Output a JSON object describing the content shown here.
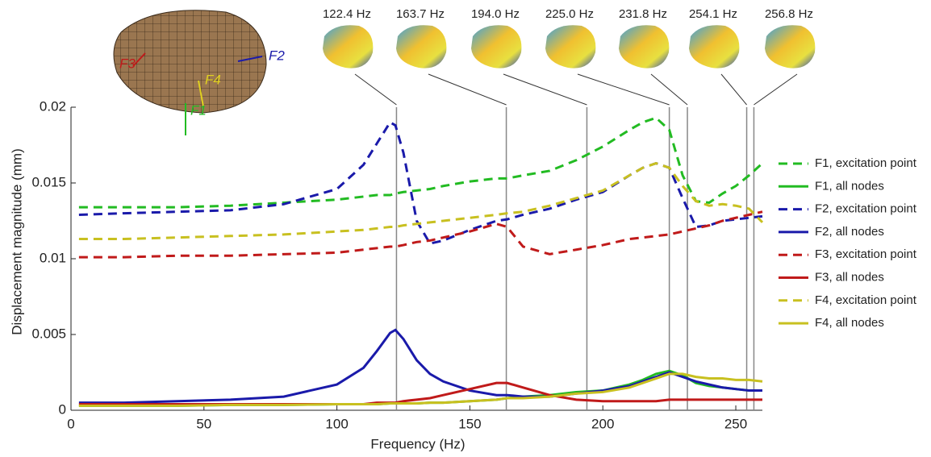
{
  "chart_data": {
    "type": "line",
    "xlabel": "Frequency (Hz)",
    "ylabel": "Displacement magnitude (mm)",
    "xlim": [
      0,
      260
    ],
    "xticks": [
      0,
      50,
      100,
      150,
      200,
      250
    ],
    "ylim": [
      0,
      0.02
    ],
    "yticks": [
      0,
      0.005,
      0.01,
      0.015,
      0.02
    ],
    "x": [
      3,
      20,
      40,
      60,
      80,
      100,
      110,
      115,
      120,
      122,
      125,
      130,
      135,
      140,
      150,
      160,
      164,
      170,
      180,
      190,
      200,
      210,
      215,
      220,
      225,
      230,
      235,
      240,
      245,
      250,
      255,
      260
    ],
    "modes": [
      {
        "value": 122.4,
        "label": "122.4 Hz"
      },
      {
        "value": 163.7,
        "label": "163.7 Hz"
      },
      {
        "value": 194.0,
        "label": "194.0 Hz"
      },
      {
        "value": 225.0,
        "label": "225.0 Hz"
      },
      {
        "value": 231.8,
        "label": "231.8 Hz"
      },
      {
        "value": 254.1,
        "label": "254.1 Hz"
      },
      {
        "value": 256.8,
        "label": "256.8 Hz"
      }
    ],
    "inset_labels": [
      "F1",
      "F2",
      "F3",
      "F4"
    ],
    "series": [
      {
        "name": "F1, excitation point",
        "color": "#22bb22",
        "style": "dashed",
        "values": [
          0.0134,
          0.0134,
          0.0134,
          0.0135,
          0.0137,
          0.0139,
          0.0141,
          0.0142,
          0.0142,
          0.0143,
          0.0144,
          0.0145,
          0.0146,
          0.0148,
          0.0151,
          0.0153,
          0.0153,
          0.0155,
          0.0158,
          0.0165,
          0.0174,
          0.0185,
          0.019,
          0.0193,
          0.0185,
          0.0155,
          0.0138,
          0.0137,
          0.0143,
          0.0148,
          0.0155,
          0.0163
        ]
      },
      {
        "name": "F1, all nodes",
        "color": "#22bb22",
        "style": "solid",
        "values": [
          0.0003,
          0.0003,
          0.0003,
          0.00035,
          0.00035,
          0.0004,
          0.0004,
          0.0004,
          0.00045,
          0.00045,
          0.00045,
          0.00045,
          0.0005,
          0.0005,
          0.0006,
          0.0007,
          0.0008,
          0.0009,
          0.001,
          0.0012,
          0.0013,
          0.0017,
          0.002,
          0.0024,
          0.0026,
          0.0023,
          0.0018,
          0.0016,
          0.0015,
          0.0014,
          0.0013,
          0.0013
        ]
      },
      {
        "name": "F2, excitation point",
        "color": "#1a1aaa",
        "style": "dashed",
        "values": [
          0.0129,
          0.013,
          0.0131,
          0.0132,
          0.0136,
          0.0146,
          0.0162,
          0.0176,
          0.019,
          0.0188,
          0.017,
          0.0125,
          0.011,
          0.0112,
          0.0119,
          0.0125,
          0.0126,
          0.0129,
          0.0133,
          0.0139,
          0.0144,
          0.0155,
          0.016,
          0.0163,
          0.016,
          0.014,
          0.0121,
          0.0122,
          0.0125,
          0.0126,
          0.0127,
          0.0128
        ]
      },
      {
        "name": "F2, all nodes",
        "color": "#1a1aaa",
        "style": "solid",
        "values": [
          0.0005,
          0.0005,
          0.0006,
          0.0007,
          0.0009,
          0.0017,
          0.0028,
          0.0039,
          0.0051,
          0.0053,
          0.0047,
          0.0033,
          0.0024,
          0.0019,
          0.0013,
          0.001,
          0.001,
          0.0009,
          0.0009,
          0.0011,
          0.0013,
          0.0016,
          0.0019,
          0.0022,
          0.0025,
          0.0022,
          0.0019,
          0.0017,
          0.0015,
          0.0014,
          0.0013,
          0.0013
        ]
      },
      {
        "name": "F3, excitation point",
        "color": "#c01a1a",
        "style": "dashed",
        "values": [
          0.0101,
          0.0101,
          0.0102,
          0.0102,
          0.0103,
          0.0104,
          0.0106,
          0.0107,
          0.0108,
          0.0108,
          0.0109,
          0.0111,
          0.0112,
          0.0114,
          0.0118,
          0.0123,
          0.0121,
          0.0108,
          0.0103,
          0.0106,
          0.0109,
          0.0113,
          0.0114,
          0.0115,
          0.0116,
          0.0118,
          0.012,
          0.0122,
          0.0125,
          0.0127,
          0.0129,
          0.0131
        ]
      },
      {
        "name": "F3, all nodes",
        "color": "#c01a1a",
        "style": "solid",
        "values": [
          0.0004,
          0.0004,
          0.0004,
          0.0004,
          0.0004,
          0.0004,
          0.0004,
          0.0005,
          0.0005,
          0.0005,
          0.0006,
          0.0007,
          0.0008,
          0.001,
          0.0014,
          0.0018,
          0.0018,
          0.0015,
          0.001,
          0.0007,
          0.0006,
          0.0006,
          0.0006,
          0.0006,
          0.0007,
          0.0007,
          0.0007,
          0.0007,
          0.0007,
          0.0007,
          0.0007,
          0.0007
        ]
      },
      {
        "name": "F4, excitation point",
        "color": "#c8c020",
        "style": "dashed",
        "values": [
          0.0113,
          0.0113,
          0.0114,
          0.0115,
          0.0116,
          0.0118,
          0.0119,
          0.012,
          0.0121,
          0.0121,
          0.0122,
          0.0123,
          0.0124,
          0.0125,
          0.0127,
          0.0129,
          0.013,
          0.0131,
          0.0135,
          0.014,
          0.0145,
          0.0155,
          0.016,
          0.0163,
          0.016,
          0.0148,
          0.0138,
          0.0135,
          0.0136,
          0.0135,
          0.0133,
          0.0124
        ]
      },
      {
        "name": "F4, all nodes",
        "color": "#c8c020",
        "style": "solid",
        "values": [
          0.0003,
          0.0003,
          0.0003,
          0.00035,
          0.00035,
          0.0004,
          0.0004,
          0.0004,
          0.00045,
          0.00045,
          0.00045,
          0.00045,
          0.0005,
          0.0005,
          0.0006,
          0.0007,
          0.0008,
          0.0008,
          0.0009,
          0.0011,
          0.0012,
          0.0015,
          0.0018,
          0.0021,
          0.0024,
          0.0024,
          0.0022,
          0.0021,
          0.0021,
          0.002,
          0.002,
          0.0019
        ]
      }
    ]
  }
}
